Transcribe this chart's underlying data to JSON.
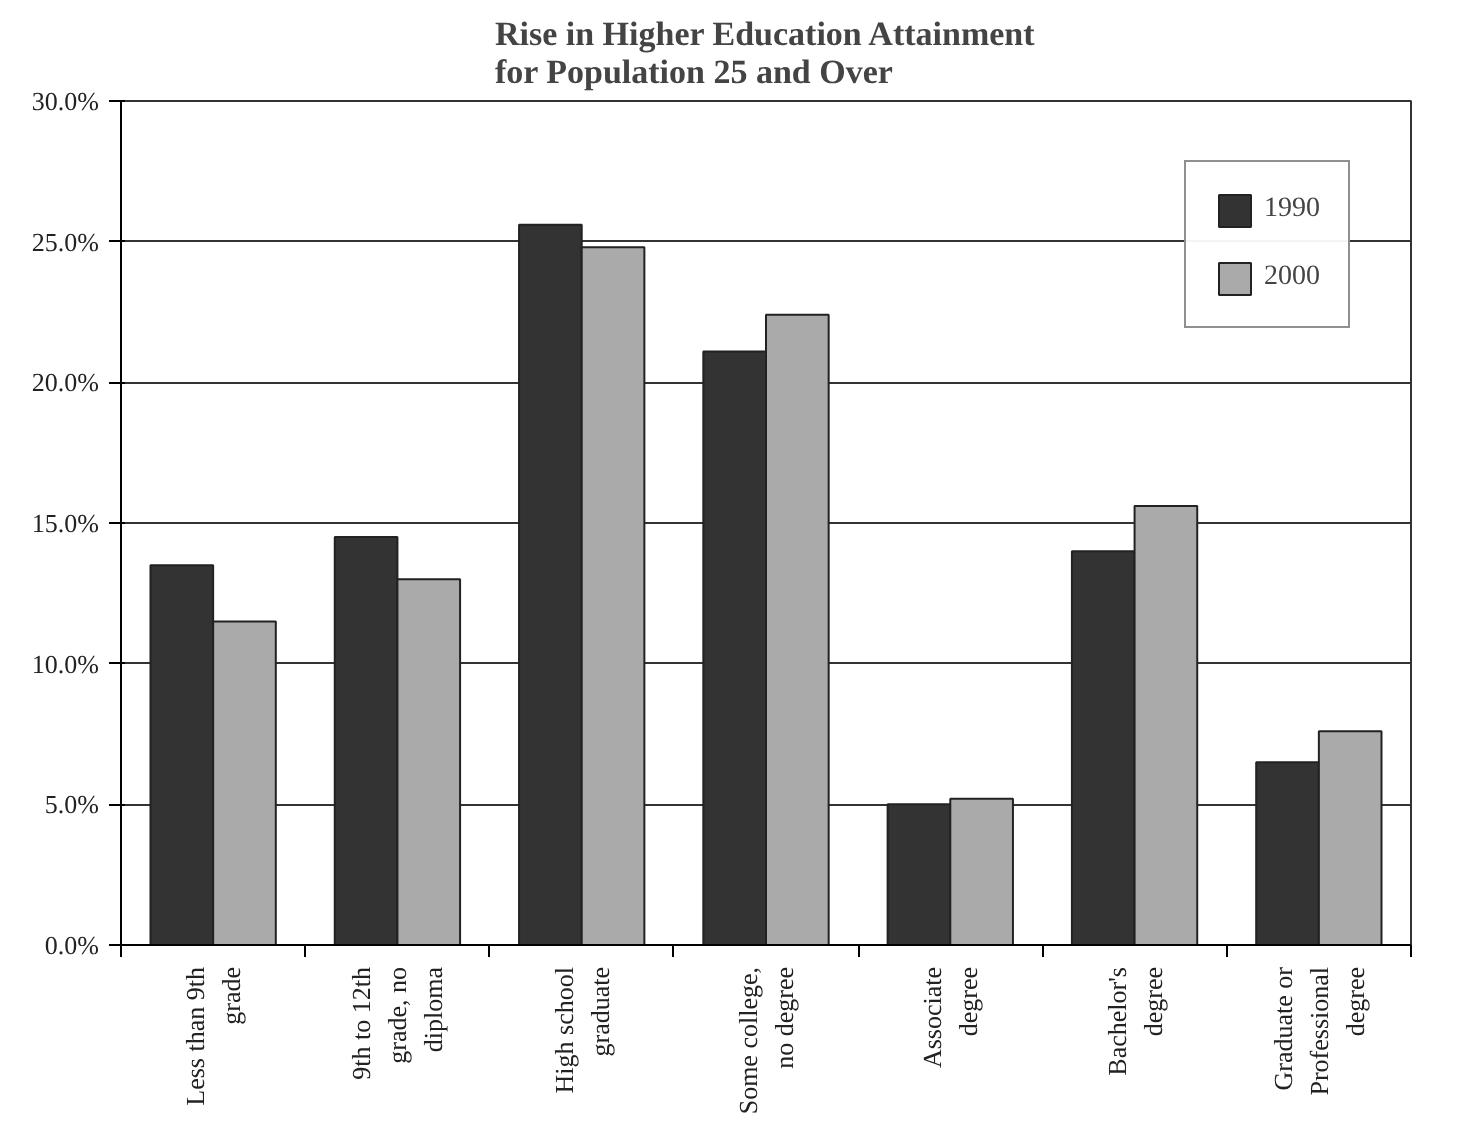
{
  "chart_data": {
    "type": "bar",
    "title": "Rise in Higher Education Attainment\nfor Population 25 and Over",
    "categories": [
      "Less than 9th\ngrade",
      "9th to 12th\ngrade, no\ndiploma",
      "High school\ngraduate",
      "Some college,\nno degree",
      "Associate\ndegree",
      "Bachelor's\ndegree",
      "Graduate or\nProfessional\ndegree"
    ],
    "series": [
      {
        "name": "1990",
        "color": "#333333",
        "values": [
          13.5,
          14.5,
          25.6,
          21.1,
          5.0,
          14.0,
          6.5
        ]
      },
      {
        "name": "2000",
        "color": "#aaaaaa",
        "values": [
          11.5,
          13.0,
          24.8,
          22.4,
          5.2,
          15.6,
          7.6
        ]
      }
    ],
    "ylim": [
      0,
      30
    ],
    "yticks": [
      {
        "value": 0,
        "label": "0.0%"
      },
      {
        "value": 5,
        "label": "5.0%"
      },
      {
        "value": 10,
        "label": "10.0%"
      },
      {
        "value": 15,
        "label": "15.0%"
      },
      {
        "value": 20,
        "label": "20.0%"
      },
      {
        "value": 25,
        "label": "25.0%"
      },
      {
        "value": 30,
        "label": "30.0%"
      }
    ],
    "grid": "y",
    "legend": "top right"
  }
}
